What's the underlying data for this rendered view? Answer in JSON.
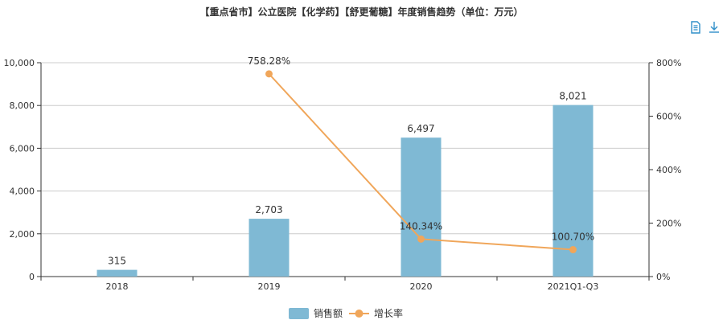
{
  "title": "【重点省市】公立医院【化学药】【舒更葡糖】年度销售趋势（单位：万元）",
  "toolbox": {
    "icons": [
      "data-view-icon",
      "download-icon"
    ]
  },
  "colors": {
    "bar": "#7fb9d4",
    "line": "#f0a65a",
    "axis": "#333333",
    "grid": "#cccccc",
    "text": "#333333"
  },
  "chart_data": {
    "type": "bar",
    "categories": [
      "2018",
      "2019",
      "2020",
      "2021Q1-Q3"
    ],
    "series": [
      {
        "name": "销售额",
        "type": "bar",
        "axis": "left",
        "values": [
          315,
          2703,
          6497,
          8021
        ],
        "labels": [
          "315",
          "2,703",
          "6,497",
          "8,021"
        ]
      },
      {
        "name": "增长率",
        "type": "line",
        "axis": "right",
        "values": [
          null,
          758.28,
          140.34,
          100.7
        ],
        "labels": [
          "",
          "758.28%",
          "140.34%",
          "100.70%"
        ]
      }
    ],
    "y_left": {
      "min": 0,
      "max": 10000,
      "ticks": [
        "0",
        "2,000",
        "4,000",
        "6,000",
        "8,000",
        "10,000"
      ]
    },
    "y_right": {
      "min": 0,
      "max": 800,
      "ticks": [
        "0%",
        "200%",
        "400%",
        "600%",
        "800%"
      ]
    },
    "grid": true,
    "legend_position": "bottom-center"
  }
}
